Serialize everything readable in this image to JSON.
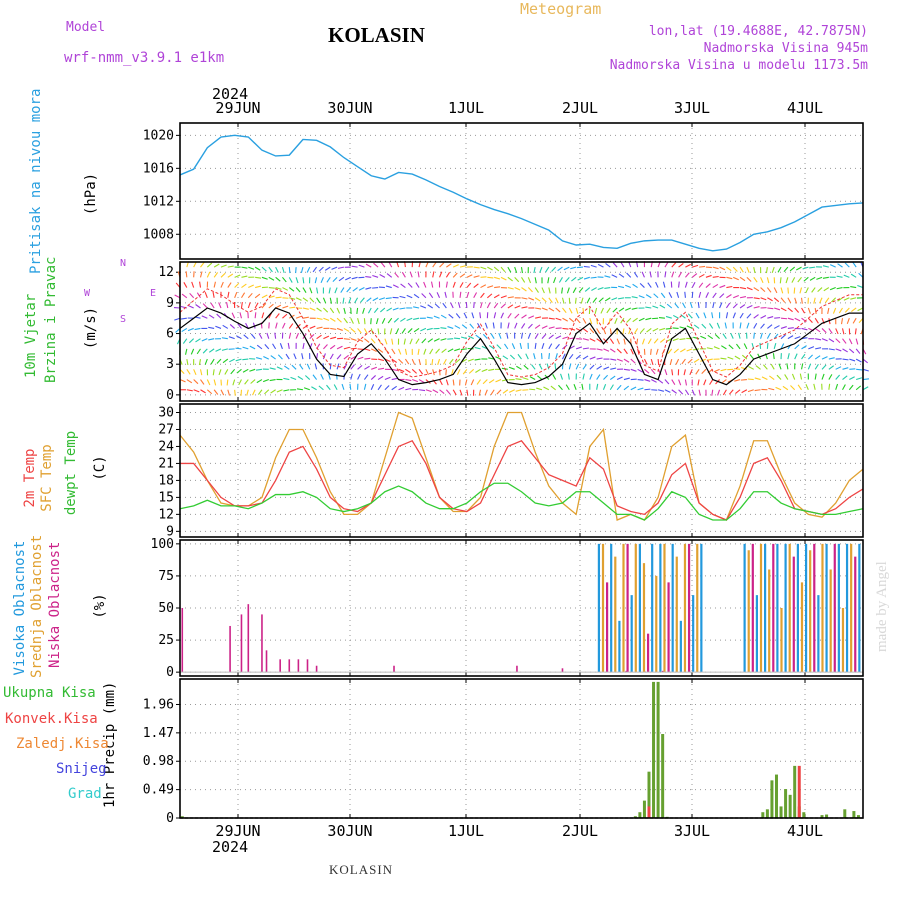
{
  "header": {
    "model_label": "Model",
    "model_name": "wrf-nmm_v3.9.1  e1km",
    "title": "KOLASIN",
    "meteogram": "Meteogram",
    "lonlat": "lon,lat (19.4688E, 42.7875N)",
    "elevation": "Nadmorska Visina 945m",
    "model_elevation": "Nadmorska Visina u modelu 1173.5m",
    "year_top": "2024",
    "year_bottom": "2024"
  },
  "footer": {
    "station": "KOLASIN",
    "watermark": "made by Angel"
  },
  "colors": {
    "pressure": "#2aa0e0",
    "temp2m": "#ee4444",
    "sfc": "#e0a030",
    "dew": "#33cc33",
    "high_cloud": "#2299dd",
    "mid_cloud": "#e0a030",
    "low_cloud": "#cc2288",
    "precip": "#66a030",
    "conv": "#ee4444",
    "snow": "#4444dd",
    "grad": "#33cccc"
  },
  "labels": {
    "pressure_name": "Pritisak na nivou mora",
    "pressure_unit": "(hPa)",
    "wind_name1": "10m Vjetar",
    "wind_name2": "Brzina i Pravac",
    "wind_unit": "(m/s)",
    "compass_n": "N",
    "compass_w": "W",
    "compass_e": "E",
    "compass_s": "S",
    "temp_name1": "2m Temp",
    "temp_name2": "SFC Temp",
    "temp_name3": "dewpt Temp",
    "temp_unit": "(C)",
    "cloud_name1": "Visoka Oblacnost",
    "cloud_name2": "Srednja Oblacnost",
    "cloud_name3": "Niska Oblacnost",
    "cloud_unit": "(%)",
    "precip_name": "1hr Precip (mm)",
    "legend_total": "Ukupna Kisa",
    "legend_conv": "Konvek.Kisa",
    "legend_frozen": "Zaledj.Kisa",
    "legend_snow": "Snijeg",
    "legend_grad": "Grad"
  },
  "chart_data": [
    {
      "type": "line",
      "name": "pressure",
      "x_ticks": [
        "29JUN",
        "30JUN",
        "1JUL",
        "2JUL",
        "3JUL",
        "4JUL"
      ],
      "y_ticks": [
        1008,
        1012,
        1016,
        1020
      ],
      "ylim": [
        1005,
        1021.5
      ],
      "ylabel": "(hPa)",
      "x_hours": [
        0,
        3,
        6,
        9,
        12,
        15,
        18,
        21,
        24,
        27,
        30,
        33,
        36,
        39,
        42,
        45,
        48,
        51,
        54,
        57,
        60,
        63,
        66,
        69,
        72,
        75,
        78,
        81,
        84,
        87,
        90,
        93,
        96,
        99,
        102,
        105,
        108,
        111,
        114,
        117,
        120,
        123,
        126,
        129,
        132,
        135,
        138,
        141,
        144,
        147,
        150
      ],
      "values": [
        1015.2,
        1015.9,
        1018.5,
        1019.8,
        1020.0,
        1019.8,
        1018.2,
        1017.5,
        1017.6,
        1019.5,
        1019.4,
        1018.6,
        1017.3,
        1016.2,
        1015.1,
        1014.7,
        1015.5,
        1015.3,
        1014.6,
        1013.8,
        1013.1,
        1012.3,
        1011.6,
        1011.0,
        1010.5,
        1009.9,
        1009.2,
        1008.5,
        1007.2,
        1006.7,
        1006.8,
        1006.4,
        1006.3,
        1006.9,
        1007.2,
        1007.3,
        1007.3,
        1006.8,
        1006.3,
        1006.0,
        1006.2,
        1007.0,
        1008.0,
        1008.3,
        1008.8,
        1009.5,
        1010.4,
        1011.3,
        1011.5,
        1011.7,
        1011.8
      ],
      "grid": true
    },
    {
      "type": "line",
      "name": "wind",
      "x_ticks": [
        "29JUN",
        "30JUN",
        "1JUL",
        "2JUL",
        "3JUL",
        "4JUL"
      ],
      "y_ticks": [
        0,
        3,
        6,
        9,
        12
      ],
      "ylim": [
        -0.6,
        13
      ],
      "ylabel": "(m/s)",
      "x_hours": [
        0,
        3,
        6,
        9,
        12,
        15,
        18,
        21,
        24,
        27,
        30,
        33,
        36,
        39,
        42,
        45,
        48,
        51,
        54,
        57,
        60,
        63,
        66,
        69,
        72,
        75,
        78,
        81,
        84,
        87,
        90,
        93,
        96,
        99,
        102,
        105,
        108,
        111,
        114,
        117,
        120,
        123,
        126,
        129,
        132,
        135,
        138,
        141,
        144,
        147,
        150
      ],
      "values": [
        6.5,
        7.5,
        8.5,
        8.0,
        7.2,
        6.5,
        7.0,
        8.5,
        8.0,
        6.0,
        3.5,
        2.0,
        1.8,
        4.0,
        5.0,
        3.5,
        1.5,
        1.0,
        1.2,
        1.5,
        2.0,
        4.0,
        5.5,
        3.5,
        1.2,
        1.0,
        1.2,
        1.8,
        3.0,
        6.0,
        7.0,
        5.0,
        6.5,
        5.0,
        2.0,
        1.5,
        5.5,
        6.5,
        4.0,
        1.5,
        1.0,
        2.0,
        3.5,
        4.0,
        4.5,
        5.0,
        6.0,
        7.0,
        7.5,
        8.0,
        8.0
      ],
      "wind_colors": [
        "#ff3333",
        "#ff7733",
        "#ffcc22",
        "#99dd22",
        "#22cc22",
        "#22ccaa",
        "#22aaee",
        "#4455ee",
        "#9933dd",
        "#dd33aa"
      ],
      "grid": true
    },
    {
      "type": "line",
      "name": "temperature",
      "x_ticks": [
        "29JUN",
        "30JUN",
        "1JUL",
        "2JUL",
        "3JUL",
        "4JUL"
      ],
      "y_ticks": [
        9,
        12,
        15,
        18,
        21,
        24,
        27,
        30
      ],
      "ylim": [
        8,
        31.5
      ],
      "ylabel": "(C)",
      "x_hours": [
        0,
        3,
        6,
        9,
        12,
        15,
        18,
        21,
        24,
        27,
        30,
        33,
        36,
        39,
        42,
        45,
        48,
        51,
        54,
        57,
        60,
        63,
        66,
        69,
        72,
        75,
        78,
        81,
        84,
        87,
        90,
        93,
        96,
        99,
        102,
        105,
        108,
        111,
        114,
        117,
        120,
        123,
        126,
        129,
        132,
        135,
        138,
        141,
        144,
        147,
        150
      ],
      "series": [
        {
          "name": "2m Temp",
          "values": [
            21,
            21,
            18,
            15,
            13.5,
            13.5,
            14,
            18,
            23,
            24,
            20,
            15,
            13,
            12.5,
            14,
            19,
            24,
            25,
            21,
            15,
            13,
            12.5,
            14,
            19,
            24,
            25,
            22,
            19,
            18,
            17,
            22,
            20,
            13.5,
            12.5,
            12,
            14,
            19,
            21,
            14,
            12,
            11,
            15,
            21,
            22,
            18,
            13,
            12.5,
            12,
            13,
            15,
            16.5
          ]
        },
        {
          "name": "SFC Temp",
          "values": [
            26,
            23,
            18,
            14,
            13.5,
            13.5,
            15,
            22,
            27,
            27,
            22,
            16,
            12,
            12,
            14,
            22,
            30,
            29,
            22,
            15,
            12.5,
            12.5,
            15,
            24,
            30,
            30,
            23,
            17,
            14,
            12,
            24,
            27,
            11,
            12,
            11,
            15,
            24,
            26,
            14,
            12,
            11,
            17,
            25,
            25,
            19,
            14,
            12,
            11.5,
            14,
            18,
            20
          ]
        },
        {
          "name": "dewpt Temp",
          "values": [
            13,
            13.5,
            14.5,
            13.5,
            13.5,
            13,
            14,
            15.5,
            15.5,
            16,
            15,
            13,
            12.5,
            13,
            14,
            16,
            17,
            16,
            14,
            13,
            13,
            14,
            16,
            17.5,
            17.5,
            16,
            14,
            13.5,
            14,
            16,
            16,
            14,
            12,
            12,
            11,
            13,
            16,
            15,
            12,
            11,
            11,
            13,
            16,
            16,
            14,
            13,
            12.5,
            12,
            12,
            12.5,
            13
          ]
        },
        {
          "name": "legend_hidden",
          "values": []
        }
      ],
      "grid": true
    },
    {
      "type": "bar",
      "name": "cloudiness",
      "x_ticks": [
        "29JUN",
        "30JUN",
        "1JUL",
        "2JUL",
        "3JUL",
        "4JUL"
      ],
      "y_ticks": [
        0,
        25,
        50,
        75,
        100
      ],
      "ylim": [
        -3,
        103
      ],
      "ylabel": "(%)",
      "low_bars": [
        [
          0.5,
          50
        ],
        [
          11,
          36
        ],
        [
          13.5,
          45
        ],
        [
          15,
          53
        ],
        [
          18,
          45
        ],
        [
          19,
          17
        ],
        [
          22,
          10
        ],
        [
          24,
          10
        ],
        [
          26,
          10
        ],
        [
          28,
          10
        ],
        [
          30,
          5
        ],
        [
          47,
          5
        ],
        [
          74,
          5
        ],
        [
          84,
          3
        ],
        [
          98,
          1
        ],
        [
          102,
          1
        ],
        [
          106,
          1
        ],
        [
          110,
          1
        ]
      ],
      "grid": true
    },
    {
      "type": "bar",
      "name": "precipitation",
      "x_ticks": [
        "29JUN",
        "30JUN",
        "1JUL",
        "2JUL",
        "3JUL",
        "4JUL"
      ],
      "y_ticks": [
        0,
        0.49,
        0.98,
        1.47,
        1.96
      ],
      "ylim": [
        0,
        2.4
      ],
      "ylabel": "1hr Precip (mm)",
      "x_hours": [
        0.5,
        100,
        101,
        102,
        103,
        104,
        105,
        106,
        107,
        128,
        129,
        130,
        131,
        132,
        133,
        134,
        135,
        136,
        137,
        141,
        142,
        146,
        148,
        149
      ],
      "values": [
        0.03,
        0.03,
        0.1,
        0.3,
        0.8,
        2.35,
        2.35,
        1.45,
        0.02,
        0.1,
        0.15,
        0.65,
        0.75,
        0.2,
        0.5,
        0.4,
        0.9,
        0.2,
        0.1,
        0.05,
        0.06,
        0.15,
        0.12,
        0.05
      ],
      "grid": true
    }
  ]
}
